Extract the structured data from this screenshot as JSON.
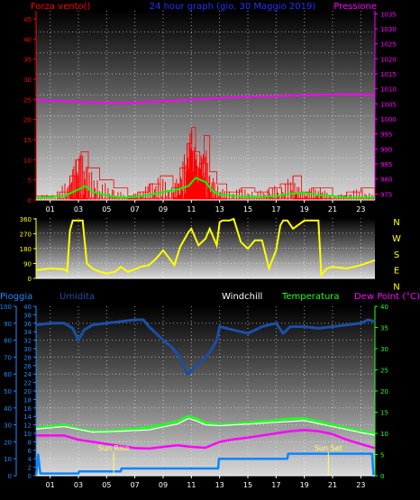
{
  "header": {
    "left": "Forza vento()",
    "center": "24 hour graph (gio. 30 Maggio 2019)",
    "right": "Pressione",
    "color_left": "#ff0000",
    "color_center": "#2233ff",
    "color_right": "#ff00ff"
  },
  "wind_dir_labels": [
    "N",
    "W",
    "S",
    "E",
    "N"
  ],
  "bottom_header": {
    "pioggia": "Pioggia",
    "umidita": "Umidita",
    "windchill": "Windchill",
    "temperatura": "Temperatura",
    "dewpoint": "Dew Point (°C)"
  },
  "annotations": {
    "sunrise": "Sun Rise",
    "sunset": "Sun Set"
  },
  "chart_data": [
    {
      "type": "line",
      "title": "24 hour graph (gio. 30 Maggio 2019)",
      "x_ticks": [
        "01",
        "03",
        "05",
        "07",
        "09",
        "11",
        "13",
        "15",
        "17",
        "19",
        "21",
        "23"
      ],
      "x_range": [
        0,
        24
      ],
      "left_axis": {
        "label": "Forza vento()",
        "range": [
          0,
          47
        ],
        "ticks": [
          0,
          5,
          10,
          15,
          20,
          25,
          30,
          35,
          40,
          45
        ]
      },
      "right_axis": {
        "label": "Pressione",
        "range": [
          973,
          1036
        ],
        "ticks": [
          975,
          980,
          985,
          990,
          995,
          1000,
          1005,
          1010,
          1015,
          1020,
          1025,
          1030,
          1035
        ]
      },
      "series": [
        {
          "name": "Pressione",
          "axis": "right",
          "color": "#ff00ff",
          "x": [
            0,
            2,
            4,
            6,
            7,
            9,
            11,
            13,
            15,
            17,
            19,
            21,
            23,
            24
          ],
          "y": [
            1006.2,
            1005.9,
            1005.5,
            1005.2,
            1005.4,
            1005.9,
            1006.4,
            1007.0,
            1007.4,
            1007.6,
            1007.9,
            1008.1,
            1008.2,
            1007.8
          ]
        },
        {
          "name": "Forza vento",
          "axis": "left",
          "color": "#ff0000",
          "sampled": true,
          "x": [
            0,
            1.5,
            2.4,
            2.8,
            3.2,
            3.7,
            4.5,
            5.5,
            6.5,
            7.2,
            8.0,
            8.8,
            9.7,
            10.2,
            10.7,
            11.0,
            11.3,
            11.6,
            11.9,
            12.3,
            12.8,
            13.5,
            14.5,
            15.5,
            16.5,
            17.3,
            18.2,
            18.8,
            19.5,
            20.2,
            21.0,
            22.0,
            23.0,
            24.0
          ],
          "y": [
            1,
            2,
            6,
            10,
            12,
            8,
            5,
            3,
            1,
            2,
            4,
            6,
            3,
            8,
            14,
            18,
            12,
            9,
            16,
            7,
            4,
            2,
            3,
            2,
            3,
            4,
            6,
            2,
            3,
            3,
            1,
            2,
            3,
            1
          ]
        },
        {
          "name": "Vento medio",
          "axis": "left",
          "color": "#00ff00",
          "x": [
            0,
            2,
            3,
            3.5,
            4,
            5,
            6,
            7,
            8,
            9,
            10,
            10.8,
            11.3,
            12,
            12.5,
            13,
            14,
            15,
            16,
            17,
            18,
            19,
            20,
            21,
            22,
            23,
            24
          ],
          "y": [
            0.5,
            1.0,
            2.6,
            3.5,
            2.0,
            1.2,
            0.6,
            0.8,
            1.2,
            2.0,
            2.6,
            3.5,
            5.5,
            4.5,
            2.2,
            1.4,
            1.0,
            0.8,
            0.8,
            1.0,
            1.5,
            1.8,
            1.2,
            1.0,
            0.6,
            0.6,
            0.6
          ]
        }
      ]
    },
    {
      "type": "line",
      "title": "",
      "x_range": [
        0,
        24
      ],
      "left_axis": {
        "label": "",
        "range": [
          0,
          365
        ],
        "ticks": [
          0,
          90,
          180,
          270,
          360
        ]
      },
      "series": [
        {
          "name": "",
          "color": "#ffff00",
          "x": [
            0,
            1,
            2,
            2.2,
            2.4,
            2.6,
            3.3,
            3.6,
            4,
            4.5,
            5,
            5.6,
            6,
            6.5,
            7,
            7.4,
            8,
            8.5,
            9,
            9.8,
            10.2,
            10.8,
            11,
            11.5,
            12,
            12.3,
            12.8,
            13,
            13.2,
            13.7,
            14,
            14.5,
            15,
            15.5,
            16,
            16.5,
            17,
            17.3,
            17.5,
            17.8,
            18.2,
            19,
            19.6,
            20,
            20.2,
            20.6,
            21,
            22,
            23,
            24
          ],
          "y": [
            50,
            60,
            55,
            40,
            290,
            350,
            350,
            90,
            60,
            40,
            30,
            40,
            70,
            40,
            55,
            70,
            80,
            120,
            170,
            80,
            190,
            280,
            300,
            200,
            240,
            300,
            200,
            340,
            350,
            350,
            360,
            220,
            180,
            230,
            230,
            60,
            170,
            320,
            350,
            350,
            300,
            350,
            350,
            350,
            20,
            60,
            70,
            60,
            80,
            110
          ]
        }
      ]
    },
    {
      "type": "line",
      "title": "",
      "x_range": [
        0,
        24
      ],
      "left_axis": {
        "label": "Pioggia",
        "range": [
          0,
          40
        ],
        "ticks": [
          0,
          2,
          4,
          6,
          8,
          10,
          12,
          14,
          16,
          18,
          20,
          22,
          24,
          26,
          28,
          30,
          32,
          34,
          36,
          38,
          40
        ]
      },
      "outer_left_axis": {
        "label": "Umidita",
        "range": [
          0,
          100
        ],
        "ticks": [
          0,
          10,
          20,
          30,
          40,
          50,
          60,
          70,
          80,
          90,
          100
        ]
      },
      "right_axis": {
        "label": "Dew Point (°C)",
        "range": [
          0,
          40
        ],
        "ticks": [
          0,
          5,
          10,
          15,
          20,
          25,
          30,
          35,
          40
        ]
      },
      "series": [
        {
          "name": "Umidita",
          "axis": "outer_left",
          "color": "#1a4fa8",
          "x": [
            0,
            1,
            2,
            2.6,
            3,
            3.4,
            4,
            5,
            6,
            7,
            7.6,
            8,
            9,
            9.6,
            10,
            10.3,
            10.7,
            11,
            11.5,
            12,
            12.4,
            12.8,
            13,
            14,
            15,
            16,
            17,
            17.5,
            18,
            19,
            20,
            21,
            22,
            23,
            23.5,
            24
          ],
          "y": [
            89,
            90,
            90,
            87,
            80,
            86,
            89,
            90,
            91,
            92,
            92,
            88,
            80,
            76,
            72,
            68,
            60,
            62,
            66,
            70,
            74,
            80,
            88,
            86,
            84,
            88,
            90,
            84,
            88,
            88,
            87,
            88,
            89,
            90,
            92,
            91
          ]
        },
        {
          "name": "Temperatura",
          "axis": "right",
          "color": "#22ff22",
          "x": [
            0,
            2,
            3,
            4,
            5,
            6,
            7,
            8,
            9,
            10,
            10.8,
            11.3,
            12,
            13,
            14,
            15,
            16,
            17,
            18,
            19,
            20,
            21,
            22,
            23,
            24
          ],
          "y": [
            11.2,
            12.0,
            11.0,
            10.5,
            10.4,
            10.8,
            11.0,
            11.4,
            12.0,
            12.8,
            14.0,
            13.5,
            12.5,
            12.0,
            12.2,
            12.5,
            12.8,
            13.0,
            13.4,
            13.5,
            12.8,
            12.0,
            11.2,
            10.5,
            10.0
          ]
        },
        {
          "name": "Windchill",
          "axis": "right",
          "color": "#ffffff",
          "x": [
            0,
            2,
            4,
            6,
            8,
            9,
            10,
            10.8,
            11.3,
            12,
            13,
            15,
            17,
            19,
            21,
            23,
            24
          ],
          "y": [
            11.0,
            11.6,
            10.3,
            10.5,
            10.8,
            11.5,
            12.2,
            13.5,
            13.0,
            12.0,
            11.8,
            12.2,
            12.6,
            13.0,
            11.6,
            10.2,
            9.6
          ]
        },
        {
          "name": "Dew Point (°C)",
          "axis": "right",
          "color": "#ff00ff",
          "x": [
            0,
            2,
            3,
            4,
            5,
            6,
            7,
            8,
            9,
            10,
            11,
            12,
            13,
            14,
            15,
            16,
            17,
            18,
            19,
            20,
            21,
            22,
            23,
            24
          ],
          "y": [
            9.5,
            9.5,
            8.5,
            8.0,
            7.5,
            7.0,
            6.5,
            6.4,
            6.8,
            7.2,
            6.8,
            6.6,
            8.0,
            8.6,
            9.0,
            9.5,
            10.0,
            10.5,
            10.8,
            10.5,
            9.8,
            8.5,
            7.5,
            6.5
          ]
        },
        {
          "name": "Pioggia",
          "axis": "left",
          "color": "#0a84ff",
          "x": [
            0,
            0.15,
            0.3,
            3,
            3.05,
            6,
            6.05,
            12.9,
            12.95,
            17.8,
            17.85,
            23.8,
            23.9,
            24
          ],
          "y": [
            0,
            5,
            0.5,
            0.5,
            1,
            1,
            1.7,
            1.7,
            4,
            4,
            5.2,
            5.2,
            0,
            0
          ]
        }
      ],
      "sunrise_hour": 5.5,
      "sunset_hour": 20.7
    }
  ]
}
